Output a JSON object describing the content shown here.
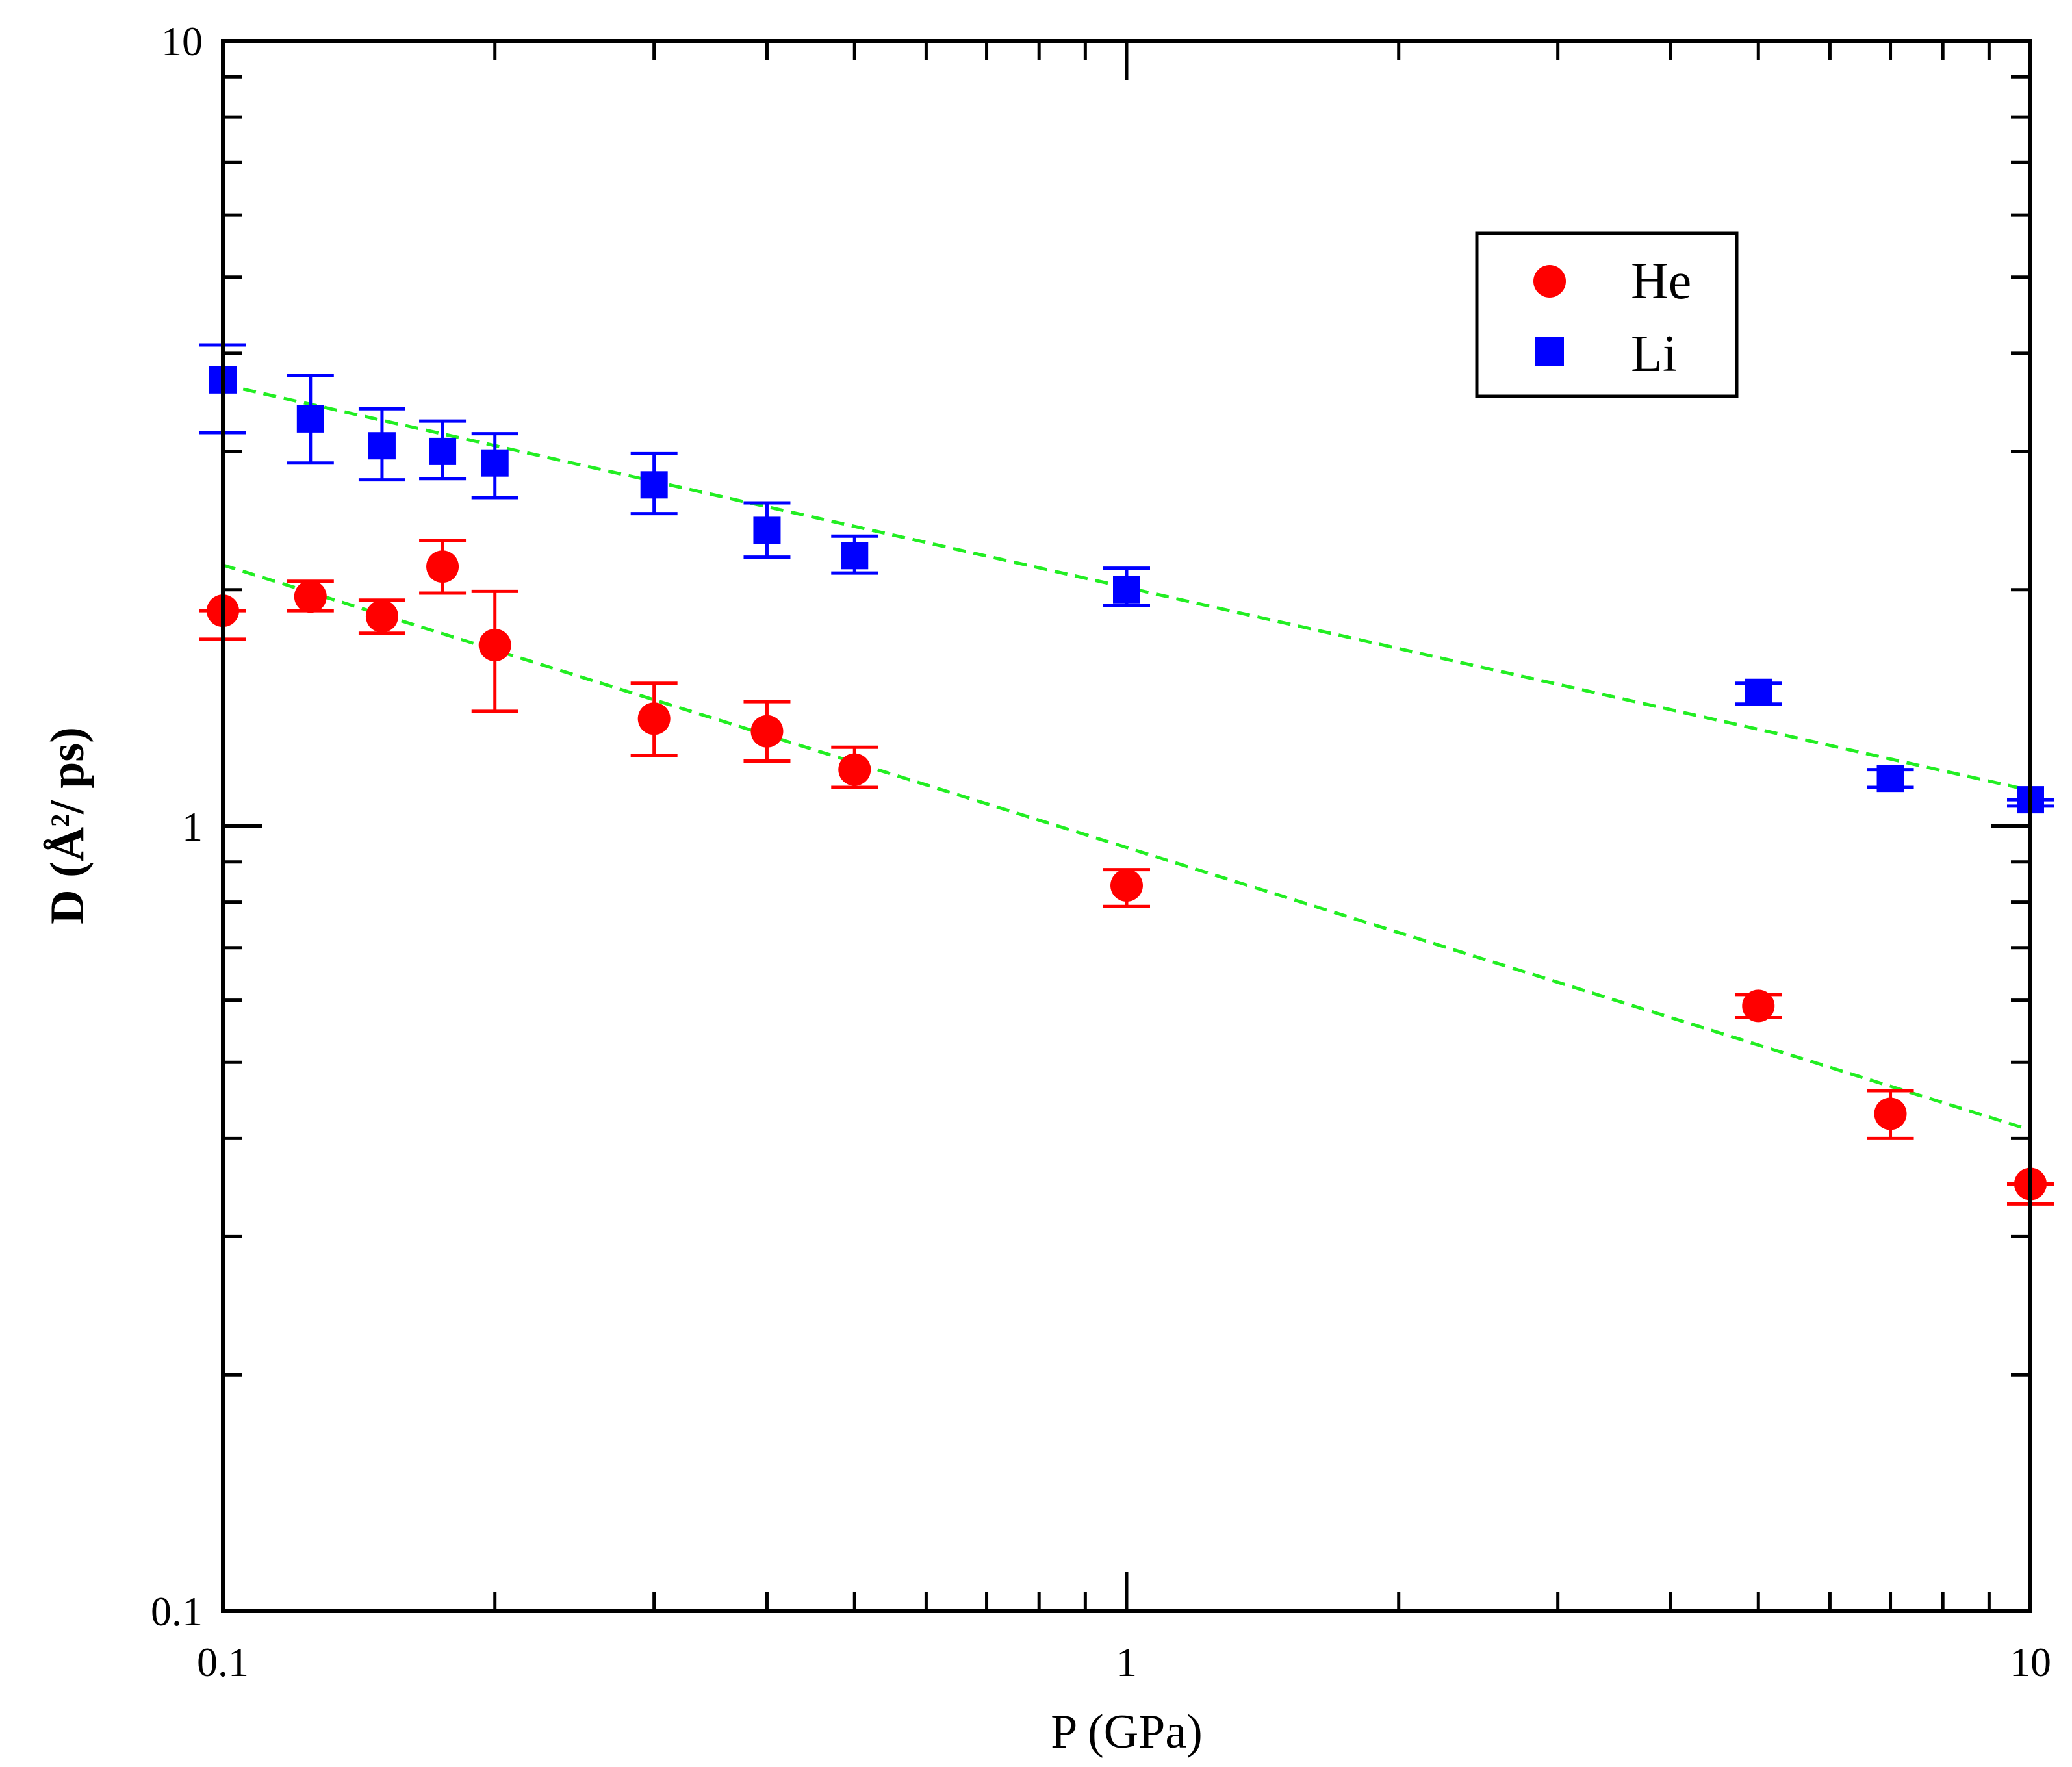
{
  "chart_data": {
    "type": "scatter",
    "title": "",
    "xlabel": "P (GPa)",
    "ylabel_parts": {
      "prefix": "D  (",
      "unit_base": "Å",
      "unit_exp": "2",
      "suffix": "/ ps)"
    },
    "xscale": "log",
    "yscale": "log",
    "xlim": [
      0.1,
      10
    ],
    "ylim": [
      0.1,
      10
    ],
    "x_tick_labels": [
      {
        "value": 0.1,
        "label": "0.1"
      },
      {
        "value": 1,
        "label": "1"
      },
      {
        "value": 10,
        "label": "10"
      }
    ],
    "y_tick_labels": [
      {
        "value": 0.1,
        "label": "0.1"
      },
      {
        "value": 1,
        "label": "1"
      },
      {
        "value": 10,
        "label": "10"
      }
    ],
    "legend_position": "top-right",
    "series": [
      {
        "name": "He",
        "marker": "circle",
        "color": "#ff0000",
        "points": [
          {
            "x": 0.1,
            "y": 1.88,
            "err_low": 1.73,
            "err_high": 1.88
          },
          {
            "x": 0.125,
            "y": 1.96,
            "err_low": 1.88,
            "err_high": 2.05
          },
          {
            "x": 0.15,
            "y": 1.85,
            "err_low": 1.76,
            "err_high": 1.94
          },
          {
            "x": 0.175,
            "y": 2.14,
            "err_low": 1.98,
            "err_high": 2.31
          },
          {
            "x": 0.2,
            "y": 1.7,
            "err_low": 1.4,
            "err_high": 1.99
          },
          {
            "x": 0.3,
            "y": 1.37,
            "err_low": 1.23,
            "err_high": 1.52
          },
          {
            "x": 0.4,
            "y": 1.32,
            "err_low": 1.21,
            "err_high": 1.44
          },
          {
            "x": 0.5,
            "y": 1.18,
            "err_low": 1.12,
            "err_high": 1.26
          },
          {
            "x": 1.0,
            "y": 0.84,
            "err_low": 0.79,
            "err_high": 0.88
          },
          {
            "x": 5.0,
            "y": 0.59,
            "err_low": 0.57,
            "err_high": 0.61
          },
          {
            "x": 7.0,
            "y": 0.43,
            "err_low": 0.4,
            "err_high": 0.46
          },
          {
            "x": 10.0,
            "y": 0.35,
            "err_low": 0.33,
            "err_high": 0.35
          }
        ]
      },
      {
        "name": "Li",
        "marker": "square",
        "color": "#0000ff",
        "points": [
          {
            "x": 0.1,
            "y": 3.7,
            "err_low": 3.17,
            "err_high": 4.1
          },
          {
            "x": 0.125,
            "y": 3.3,
            "err_low": 2.9,
            "err_high": 3.75
          },
          {
            "x": 0.15,
            "y": 3.05,
            "err_low": 2.76,
            "err_high": 3.4
          },
          {
            "x": 0.175,
            "y": 3.0,
            "err_low": 2.77,
            "err_high": 3.28
          },
          {
            "x": 0.2,
            "y": 2.9,
            "err_low": 2.62,
            "err_high": 3.16
          },
          {
            "x": 0.3,
            "y": 2.72,
            "err_low": 2.5,
            "err_high": 2.98
          },
          {
            "x": 0.4,
            "y": 2.38,
            "err_low": 2.2,
            "err_high": 2.58
          },
          {
            "x": 0.5,
            "y": 2.21,
            "err_low": 2.1,
            "err_high": 2.34
          },
          {
            "x": 1.0,
            "y": 2.0,
            "err_low": 1.91,
            "err_high": 2.13
          },
          {
            "x": 5.0,
            "y": 1.48,
            "err_low": 1.43,
            "err_high": 1.52
          },
          {
            "x": 7.0,
            "y": 1.15,
            "err_low": 1.12,
            "err_high": 1.18
          },
          {
            "x": 10.0,
            "y": 1.08,
            "err_low": 1.06,
            "err_high": 1.08
          }
        ]
      }
    ],
    "fit_lines": [
      {
        "name": "He-fit",
        "color": "#22ee22",
        "style": "dashed",
        "from": {
          "x": 0.1,
          "y": 2.15
        },
        "to": {
          "x": 10,
          "y": 0.41
        }
      },
      {
        "name": "Li-fit",
        "color": "#22ee22",
        "style": "dashed",
        "from": {
          "x": 0.1,
          "y": 3.65
        },
        "to": {
          "x": 10,
          "y": 1.11
        }
      }
    ]
  }
}
